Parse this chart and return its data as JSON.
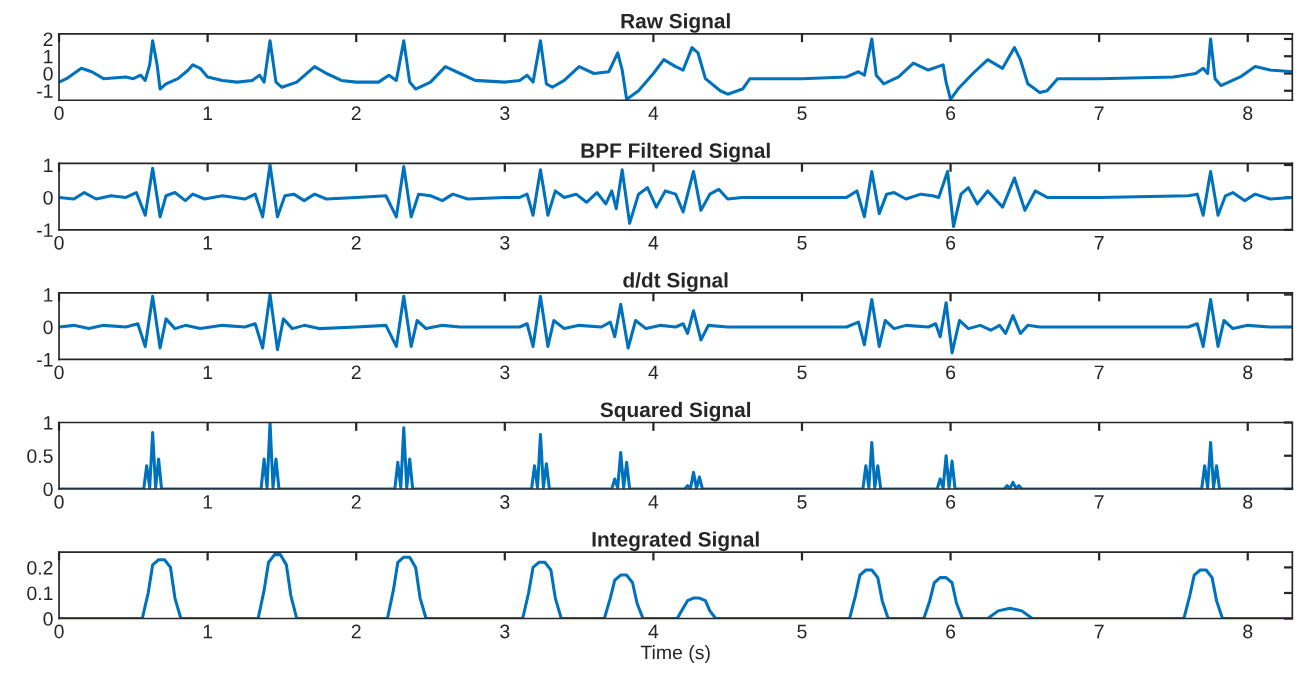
{
  "chart_data": [
    {
      "type": "line",
      "title": "Raw Signal",
      "xlim": [
        0,
        8.3
      ],
      "xticks": [
        0,
        1,
        2,
        3,
        4,
        5,
        6,
        7,
        8
      ],
      "ylim": [
        -1.55,
        2.3
      ],
      "yticks": [
        -1,
        0,
        1,
        2
      ],
      "series": [
        {
          "color": "#0072bd",
          "x": [
            0,
            0.05,
            0.15,
            0.22,
            0.3,
            0.45,
            0.5,
            0.55,
            0.58,
            0.61,
            0.63,
            0.66,
            0.68,
            0.72,
            0.8,
            0.87,
            0.9,
            0.95,
            1.0,
            1.1,
            1.2,
            1.3,
            1.35,
            1.38,
            1.42,
            1.46,
            1.5,
            1.6,
            1.72,
            1.8,
            1.9,
            2.0,
            2.15,
            2.22,
            2.27,
            2.32,
            2.36,
            2.4,
            2.5,
            2.6,
            2.7,
            2.8,
            3.0,
            3.1,
            3.15,
            3.19,
            3.24,
            3.28,
            3.32,
            3.4,
            3.5,
            3.6,
            3.7,
            3.76,
            3.79,
            3.82,
            3.9,
            4.0,
            4.07,
            4.15,
            4.2,
            4.26,
            4.3,
            4.35,
            4.45,
            4.5,
            4.6,
            4.65,
            5.0,
            5.3,
            5.38,
            5.42,
            5.47,
            5.5,
            5.55,
            5.65,
            5.75,
            5.85,
            5.95,
            5.97,
            6.0,
            6.05,
            6.15,
            6.25,
            6.35,
            6.43,
            6.47,
            6.52,
            6.6,
            6.65,
            6.72,
            7.0,
            7.5,
            7.65,
            7.7,
            7.73,
            7.75,
            7.78,
            7.82,
            7.95,
            8.05,
            8.15,
            8.3
          ],
          "values": [
            -0.5,
            -0.3,
            0.3,
            0.1,
            -0.3,
            -0.2,
            -0.3,
            -0.1,
            -0.4,
            0.5,
            1.9,
            0.5,
            -0.9,
            -0.6,
            -0.3,
            0.2,
            0.5,
            0.3,
            -0.2,
            -0.4,
            -0.5,
            -0.4,
            -0.1,
            -0.5,
            1.9,
            -0.5,
            -0.8,
            -0.5,
            0.4,
            0,
            -0.4,
            -0.5,
            -0.5,
            -0.1,
            -0.4,
            1.9,
            -0.5,
            -0.9,
            -0.5,
            0.4,
            0,
            -0.4,
            -0.5,
            -0.4,
            -0.1,
            -0.5,
            1.9,
            -0.6,
            -0.8,
            -0.4,
            0.4,
            0,
            0.1,
            1.2,
            0.2,
            -1.5,
            -1.0,
            0,
            0.8,
            0.4,
            0.2,
            1.5,
            1.2,
            -0.3,
            -1.0,
            -1.2,
            -0.9,
            -0.3,
            -0.3,
            -0.2,
            0.1,
            -0.1,
            2.0,
            -0.1,
            -0.6,
            -0.2,
            0.6,
            0.2,
            0.5,
            -0.5,
            -1.5,
            -0.9,
            0,
            0.8,
            0.3,
            1.5,
            0.8,
            -0.6,
            -1.1,
            -1.0,
            -0.3,
            -0.3,
            -0.2,
            0,
            0.3,
            0,
            2.0,
            -0.3,
            -0.7,
            -0.2,
            0.4,
            0.2,
            0.1
          ]
        }
      ]
    },
    {
      "type": "line",
      "title": "BPF Filtered Signal",
      "xlim": [
        0,
        8.3
      ],
      "xticks": [
        0,
        1,
        2,
        3,
        4,
        5,
        6,
        7,
        8
      ],
      "ylim": [
        -1,
        1.05
      ],
      "yticks": [
        -1,
        0,
        1
      ],
      "series": [
        {
          "color": "#0072bd",
          "x": [
            0,
            0.1,
            0.17,
            0.25,
            0.35,
            0.45,
            0.52,
            0.58,
            0.63,
            0.68,
            0.72,
            0.78,
            0.85,
            0.9,
            0.98,
            1.1,
            1.25,
            1.32,
            1.37,
            1.42,
            1.47,
            1.52,
            1.58,
            1.65,
            1.72,
            1.8,
            2.0,
            2.2,
            2.27,
            2.32,
            2.37,
            2.42,
            2.5,
            2.58,
            2.65,
            2.75,
            3.0,
            3.1,
            3.15,
            3.19,
            3.24,
            3.29,
            3.34,
            3.4,
            3.48,
            3.55,
            3.62,
            3.68,
            3.72,
            3.75,
            3.79,
            3.84,
            3.9,
            3.96,
            4.02,
            4.08,
            4.15,
            4.2,
            4.27,
            4.32,
            4.38,
            4.44,
            4.5,
            4.6,
            5.0,
            5.3,
            5.37,
            5.42,
            5.47,
            5.52,
            5.57,
            5.62,
            5.7,
            5.8,
            5.88,
            5.92,
            5.98,
            6.02,
            6.07,
            6.12,
            6.18,
            6.25,
            6.35,
            6.43,
            6.5,
            6.57,
            6.65,
            7.0,
            7.6,
            7.66,
            7.7,
            7.75,
            7.8,
            7.85,
            7.9,
            7.98,
            8.05,
            8.15,
            8.3
          ],
          "values": [
            0,
            -0.05,
            0.15,
            -0.05,
            0.05,
            0,
            0.15,
            -0.55,
            0.9,
            -0.6,
            0.05,
            0.15,
            -0.1,
            0.1,
            -0.05,
            0.05,
            -0.05,
            0.1,
            -0.6,
            1.0,
            -0.6,
            0.05,
            0.1,
            -0.1,
            0.1,
            -0.05,
            0,
            0.05,
            -0.6,
            0.95,
            -0.6,
            0.1,
            0.05,
            -0.1,
            0.1,
            -0.05,
            0,
            0,
            0.1,
            -0.55,
            0.85,
            -0.55,
            0.2,
            0,
            0.1,
            -0.15,
            0.15,
            -0.2,
            0.2,
            -0.35,
            0.85,
            -0.8,
            0.1,
            0.3,
            -0.3,
            0.2,
            0.1,
            -0.45,
            0.8,
            -0.4,
            0.1,
            0.25,
            -0.05,
            0,
            0,
            0,
            0.2,
            -0.6,
            0.8,
            -0.5,
            0.1,
            0.15,
            -0.05,
            0.1,
            0.05,
            0,
            0.8,
            -0.9,
            0.1,
            0.3,
            -0.2,
            0.2,
            -0.3,
            0.6,
            -0.4,
            0.2,
            0,
            0,
            0.05,
            0.1,
            -0.55,
            0.8,
            -0.55,
            0.05,
            0.15,
            -0.1,
            0.1,
            -0.05,
            0
          ]
        }
      ]
    },
    {
      "type": "line",
      "title": "d/dt Signal",
      "xlim": [
        0,
        8.3
      ],
      "xticks": [
        0,
        1,
        2,
        3,
        4,
        5,
        6,
        7,
        8
      ],
      "ylim": [
        -1,
        1.05
      ],
      "yticks": [
        -1,
        0,
        1
      ],
      "series": [
        {
          "color": "#0072bd",
          "x": [
            0,
            0.1,
            0.2,
            0.3,
            0.45,
            0.53,
            0.58,
            0.63,
            0.68,
            0.72,
            0.78,
            0.85,
            0.95,
            1.1,
            1.25,
            1.32,
            1.37,
            1.42,
            1.47,
            1.51,
            1.57,
            1.65,
            1.75,
            2.0,
            2.2,
            2.27,
            2.32,
            2.37,
            2.41,
            2.47,
            2.58,
            2.7,
            3.1,
            3.15,
            3.19,
            3.24,
            3.29,
            3.33,
            3.4,
            3.5,
            3.65,
            3.71,
            3.74,
            3.78,
            3.83,
            3.88,
            3.95,
            4.05,
            4.15,
            4.2,
            4.23,
            4.27,
            4.32,
            4.37,
            4.5,
            5.3,
            5.38,
            5.42,
            5.47,
            5.52,
            5.56,
            5.62,
            5.7,
            5.85,
            5.9,
            5.93,
            5.97,
            6.01,
            6.06,
            6.12,
            6.2,
            6.27,
            6.33,
            6.37,
            6.42,
            6.47,
            6.52,
            6.6,
            7.6,
            7.66,
            7.7,
            7.75,
            7.8,
            7.84,
            7.9,
            8.0,
            8.15,
            8.3
          ],
          "values": [
            0,
            0.05,
            -0.05,
            0.05,
            0,
            0.1,
            -0.6,
            0.95,
            -0.65,
            0.25,
            -0.05,
            0.05,
            -0.05,
            0.05,
            0,
            0.1,
            -0.65,
            1.0,
            -0.7,
            0.25,
            -0.05,
            0.05,
            -0.05,
            0,
            0.05,
            -0.6,
            0.95,
            -0.6,
            0.2,
            -0.05,
            0.05,
            0,
            0,
            0.1,
            -0.6,
            0.95,
            -0.6,
            0.2,
            -0.05,
            0.05,
            0,
            0.15,
            -0.3,
            0.7,
            -0.65,
            0.2,
            -0.05,
            0.05,
            0,
            0.1,
            -0.2,
            0.5,
            -0.4,
            0.05,
            0,
            0,
            0.15,
            -0.55,
            0.85,
            -0.6,
            0.2,
            -0.05,
            0.05,
            0,
            0.1,
            -0.3,
            0.75,
            -0.8,
            0.2,
            -0.05,
            0.05,
            -0.1,
            0.05,
            -0.2,
            0.35,
            -0.2,
            0.05,
            0,
            0,
            0.1,
            -0.6,
            0.85,
            -0.6,
            0.2,
            -0.05,
            0.05,
            0,
            0
          ]
        }
      ]
    },
    {
      "type": "line",
      "title": "Squared Signal",
      "xlim": [
        0,
        8.3
      ],
      "xticks": [
        0,
        1,
        2,
        3,
        4,
        5,
        6,
        7,
        8
      ],
      "ylim": [
        0,
        1
      ],
      "yticks": [
        0,
        0.5,
        1
      ],
      "series": [
        {
          "color": "#0072bd",
          "x": [
            0,
            0.57,
            0.59,
            0.61,
            0.63,
            0.65,
            0.67,
            0.69,
            1.36,
            1.38,
            1.4,
            1.42,
            1.44,
            1.46,
            1.48,
            2.26,
            2.28,
            2.3,
            2.32,
            2.34,
            2.36,
            2.38,
            3.18,
            3.2,
            3.22,
            3.24,
            3.26,
            3.28,
            3.3,
            3.72,
            3.74,
            3.76,
            3.78,
            3.8,
            3.82,
            3.84,
            4.21,
            4.23,
            4.25,
            4.27,
            4.29,
            4.31,
            4.33,
            5.41,
            5.43,
            5.45,
            5.47,
            5.49,
            5.51,
            5.53,
            5.91,
            5.93,
            5.95,
            5.97,
            5.99,
            6.01,
            6.03,
            6.36,
            6.38,
            6.4,
            6.42,
            6.44,
            6.46,
            6.48,
            7.69,
            7.71,
            7.73,
            7.75,
            7.77,
            7.79,
            7.81,
            8.3
          ],
          "values": [
            0,
            0,
            0.35,
            0.02,
            0.85,
            0.02,
            0.45,
            0,
            0,
            0.45,
            0.02,
            1.0,
            0.02,
            0.45,
            0,
            0,
            0.4,
            0.02,
            0.92,
            0.02,
            0.45,
            0,
            0,
            0.35,
            0.02,
            0.82,
            0.02,
            0.38,
            0,
            0,
            0.15,
            0.02,
            0.55,
            0.02,
            0.4,
            0,
            0,
            0.05,
            0.01,
            0.25,
            0.01,
            0.18,
            0,
            0,
            0.35,
            0.02,
            0.7,
            0.02,
            0.35,
            0,
            0,
            0.15,
            0.02,
            0.5,
            0.02,
            0.42,
            0,
            0,
            0.05,
            0.01,
            0.1,
            0.01,
            0.05,
            0,
            0,
            0.35,
            0.02,
            0.7,
            0.02,
            0.35,
            0,
            0
          ]
        }
      ]
    },
    {
      "type": "line",
      "title": "Integrated Signal",
      "xlabel": "Time (s)",
      "xlim": [
        0,
        8.3
      ],
      "xticks": [
        0,
        1,
        2,
        3,
        4,
        5,
        6,
        7,
        8
      ],
      "ylim": [
        0,
        0.26
      ],
      "yticks": [
        0,
        0.1,
        0.2
      ],
      "series": [
        {
          "color": "#0072bd",
          "x": [
            0,
            0.56,
            0.6,
            0.63,
            0.67,
            0.71,
            0.75,
            0.78,
            0.82,
            1.34,
            1.38,
            1.41,
            1.45,
            1.49,
            1.53,
            1.56,
            1.6,
            2.21,
            2.25,
            2.28,
            2.32,
            2.36,
            2.4,
            2.43,
            2.47,
            3.12,
            3.16,
            3.19,
            3.23,
            3.27,
            3.31,
            3.34,
            3.38,
            3.67,
            3.71,
            3.74,
            3.78,
            3.82,
            3.86,
            3.89,
            3.93,
            4.16,
            4.2,
            4.23,
            4.27,
            4.31,
            4.35,
            4.38,
            4.42,
            5.32,
            5.36,
            5.39,
            5.43,
            5.47,
            5.51,
            5.54,
            5.58,
            5.82,
            5.86,
            5.89,
            5.93,
            5.97,
            6.01,
            6.04,
            6.08,
            6.25,
            6.32,
            6.4,
            6.48,
            6.55,
            7.57,
            7.61,
            7.64,
            7.68,
            7.72,
            7.76,
            7.79,
            7.83,
            8.3
          ],
          "values": [
            0,
            0,
            0.1,
            0.21,
            0.23,
            0.23,
            0.2,
            0.08,
            0,
            0,
            0.11,
            0.22,
            0.25,
            0.25,
            0.21,
            0.09,
            0,
            0,
            0.11,
            0.22,
            0.24,
            0.24,
            0.2,
            0.08,
            0,
            0,
            0.1,
            0.2,
            0.22,
            0.22,
            0.19,
            0.08,
            0,
            0,
            0.08,
            0.15,
            0.17,
            0.17,
            0.14,
            0.06,
            0,
            0,
            0.04,
            0.07,
            0.08,
            0.08,
            0.07,
            0.03,
            0,
            0,
            0.09,
            0.17,
            0.19,
            0.19,
            0.16,
            0.07,
            0,
            0,
            0.07,
            0.14,
            0.16,
            0.16,
            0.14,
            0.06,
            0,
            0,
            0.03,
            0.04,
            0.03,
            0,
            0,
            0.09,
            0.17,
            0.19,
            0.19,
            0.16,
            0.07,
            0,
            0
          ]
        }
      ]
    }
  ]
}
